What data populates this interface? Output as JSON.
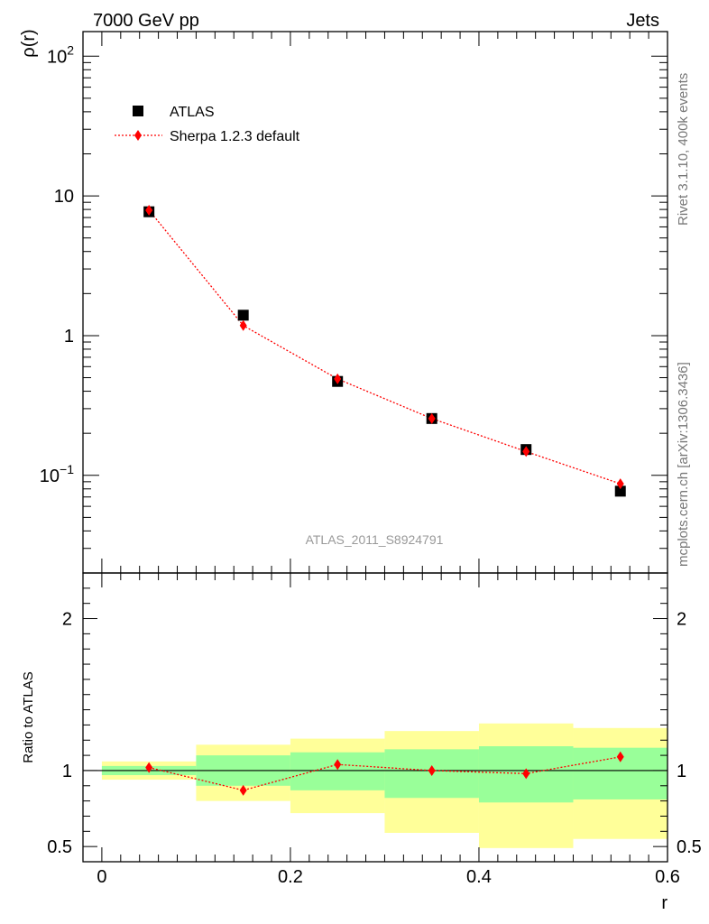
{
  "header": {
    "left": "7000 GeV pp",
    "right": "Jets"
  },
  "side_labels": {
    "rivet": "Rivet 3.1.10,  400k events",
    "mcplots": "mcplots.cern.ch [arXiv:1306.3436]"
  },
  "watermark": "ATLAS_2011_S8924791",
  "colors": {
    "data": "#000000",
    "mc": "#ff0000",
    "band_inner": "#99ff99",
    "band_outer": "#ffff99"
  },
  "chart_data": [
    {
      "type": "scatter",
      "ylabel": "ρ(r)",
      "yscale": "log",
      "xlim": [
        -0.02,
        0.6
      ],
      "ylim": [
        0.02,
        150
      ],
      "y_ticks": [
        {
          "value": 100,
          "base": "10",
          "exp": "2"
        },
        {
          "value": 10,
          "base": "10",
          "exp": ""
        },
        {
          "value": 1,
          "base": "1",
          "exp": ""
        },
        {
          "value": 0.1,
          "base": "10",
          "exp": "−1"
        }
      ],
      "legend_position": "top-left",
      "series": [
        {
          "name": "ATLAS",
          "marker": "square",
          "x": [
            0.05,
            0.15,
            0.25,
            0.35,
            0.45,
            0.55
          ],
          "values": [
            7.7,
            1.4,
            0.47,
            0.255,
            0.153,
            0.077
          ]
        },
        {
          "name": "Sherpa 1.2.3 default",
          "marker": "diamond",
          "line": "dotted",
          "x": [
            0.05,
            0.15,
            0.25,
            0.35,
            0.45,
            0.55
          ],
          "values": [
            7.9,
            1.18,
            0.49,
            0.255,
            0.148,
            0.087
          ]
        }
      ]
    },
    {
      "type": "scatter",
      "ylabel": "Ratio to ATLAS",
      "xlabel": "r",
      "xlim": [
        -0.02,
        0.6
      ],
      "ylim": [
        0.4,
        2.3
      ],
      "x_ticks": [
        "0",
        "0.2",
        "0.4",
        "0.6"
      ],
      "y_ticks": [
        "0.5",
        "1",
        "2"
      ],
      "bands": {
        "edges": [
          0.0,
          0.1,
          0.2,
          0.3,
          0.4,
          0.5,
          0.6
        ],
        "inner_low": [
          0.97,
          0.9,
          0.87,
          0.82,
          0.79,
          0.81
        ],
        "inner_high": [
          1.03,
          1.1,
          1.12,
          1.14,
          1.16,
          1.15
        ],
        "outer_low": [
          0.94,
          0.8,
          0.72,
          0.59,
          0.49,
          0.55
        ],
        "outer_high": [
          1.06,
          1.17,
          1.21,
          1.26,
          1.31,
          1.28
        ]
      },
      "series": [
        {
          "name": "Sherpa 1.2.3 default",
          "x": [
            0.05,
            0.15,
            0.25,
            0.35,
            0.45,
            0.55
          ],
          "values": [
            1.02,
            0.87,
            1.04,
            1.0,
            0.98,
            1.09
          ]
        }
      ]
    }
  ]
}
